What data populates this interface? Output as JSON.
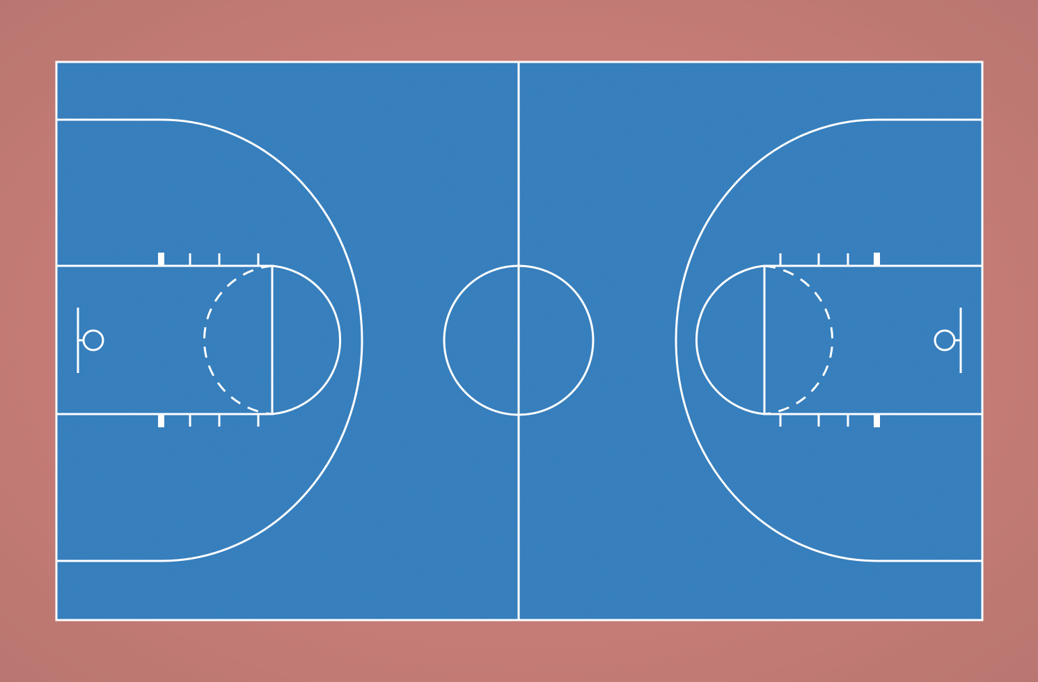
{
  "scene": {
    "subject": "basketball-court-top-view",
    "colors": {
      "surround": "#c67c76",
      "court": "#2f78b8",
      "court_texture": "#3a86c6",
      "lines": "#ffffff"
    },
    "elements": [
      "sideline",
      "center-line",
      "center-circle",
      "three-point-line-left",
      "three-point-line-right",
      "free-throw-lane-left",
      "free-throw-lane-right",
      "free-throw-circle-left",
      "free-throw-circle-right",
      "backboard-left",
      "backboard-right",
      "hoop-left",
      "hoop-right"
    ]
  }
}
